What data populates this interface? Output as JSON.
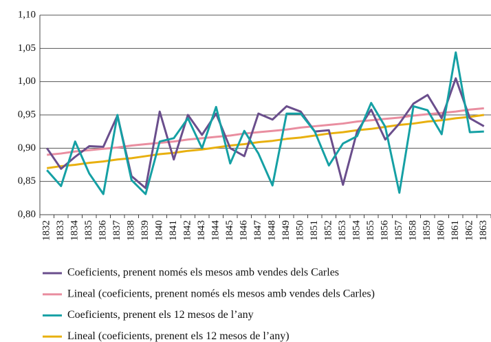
{
  "chart_data": {
    "type": "line",
    "categories": [
      "1832",
      "1833",
      "1834",
      "1835",
      "1836",
      "1837",
      "1838",
      "1839",
      "1840",
      "1841",
      "1842",
      "1843",
      "1844",
      "1845",
      "1846",
      "1847",
      "1848",
      "1849",
      "1850",
      "1851",
      "1852",
      "1853",
      "1854",
      "1855",
      "1856",
      "1857",
      "1858",
      "1859",
      "1860",
      "1861",
      "1862",
      "1863"
    ],
    "series": [
      {
        "name": "Coeficients, prenent només els mesos amb vendes dels Carles",
        "color": "#6a4e8c",
        "values": [
          0.9,
          0.869,
          0.887,
          0.903,
          0.902,
          0.949,
          0.858,
          0.84,
          0.955,
          0.883,
          0.95,
          0.92,
          0.952,
          0.9,
          0.888,
          0.952,
          0.943,
          0.963,
          0.955,
          0.925,
          0.927,
          0.845,
          0.925,
          0.958,
          0.913,
          0.937,
          0.967,
          0.98,
          0.945,
          1.005,
          0.945,
          0.933
        ]
      },
      {
        "name": "Lineal (coeficients, prenent només els mesos amb vendes dels Carles)",
        "color": "#e98ea0",
        "values": [
          0.89,
          0.892,
          0.895,
          0.897,
          0.899,
          0.901,
          0.904,
          0.906,
          0.908,
          0.91,
          0.913,
          0.915,
          0.917,
          0.919,
          0.922,
          0.924,
          0.926,
          0.928,
          0.931,
          0.933,
          0.935,
          0.937,
          0.94,
          0.942,
          0.944,
          0.946,
          0.949,
          0.951,
          0.953,
          0.955,
          0.958,
          0.96
        ]
      },
      {
        "name": "Coeficients, prenent els 12 mesos de l’any",
        "color": "#15a0a4",
        "values": [
          0.867,
          0.843,
          0.91,
          0.862,
          0.831,
          0.95,
          0.852,
          0.831,
          0.91,
          0.915,
          0.945,
          0.9,
          0.962,
          0.877,
          0.926,
          0.892,
          0.844,
          0.952,
          0.952,
          0.925,
          0.874,
          0.907,
          0.918,
          0.968,
          0.932,
          0.833,
          0.963,
          0.957,
          0.921,
          1.044,
          0.924,
          0.925
        ]
      },
      {
        "name": "Lineal (coeficients, prenent els 12 mesos de l’any)",
        "color": "#e8b00f",
        "values": [
          0.87,
          0.873,
          0.875,
          0.878,
          0.88,
          0.883,
          0.885,
          0.888,
          0.891,
          0.893,
          0.896,
          0.898,
          0.901,
          0.904,
          0.906,
          0.909,
          0.911,
          0.914,
          0.916,
          0.919,
          0.922,
          0.924,
          0.927,
          0.929,
          0.932,
          0.935,
          0.937,
          0.94,
          0.942,
          0.945,
          0.947,
          0.95
        ]
      }
    ],
    "ylim": [
      0.8,
      1.1
    ],
    "yticks": [
      {
        "value": 0.8,
        "label": "0,80"
      },
      {
        "value": 0.85,
        "label": "0,85"
      },
      {
        "value": 0.9,
        "label": "0,90"
      },
      {
        "value": 0.95,
        "label": "0,95"
      },
      {
        "value": 1.0,
        "label": "1,00"
      },
      {
        "value": 1.05,
        "label": "1,05"
      },
      {
        "value": 1.1,
        "label": "1,10"
      }
    ],
    "grid": true,
    "legend": "bottom"
  }
}
